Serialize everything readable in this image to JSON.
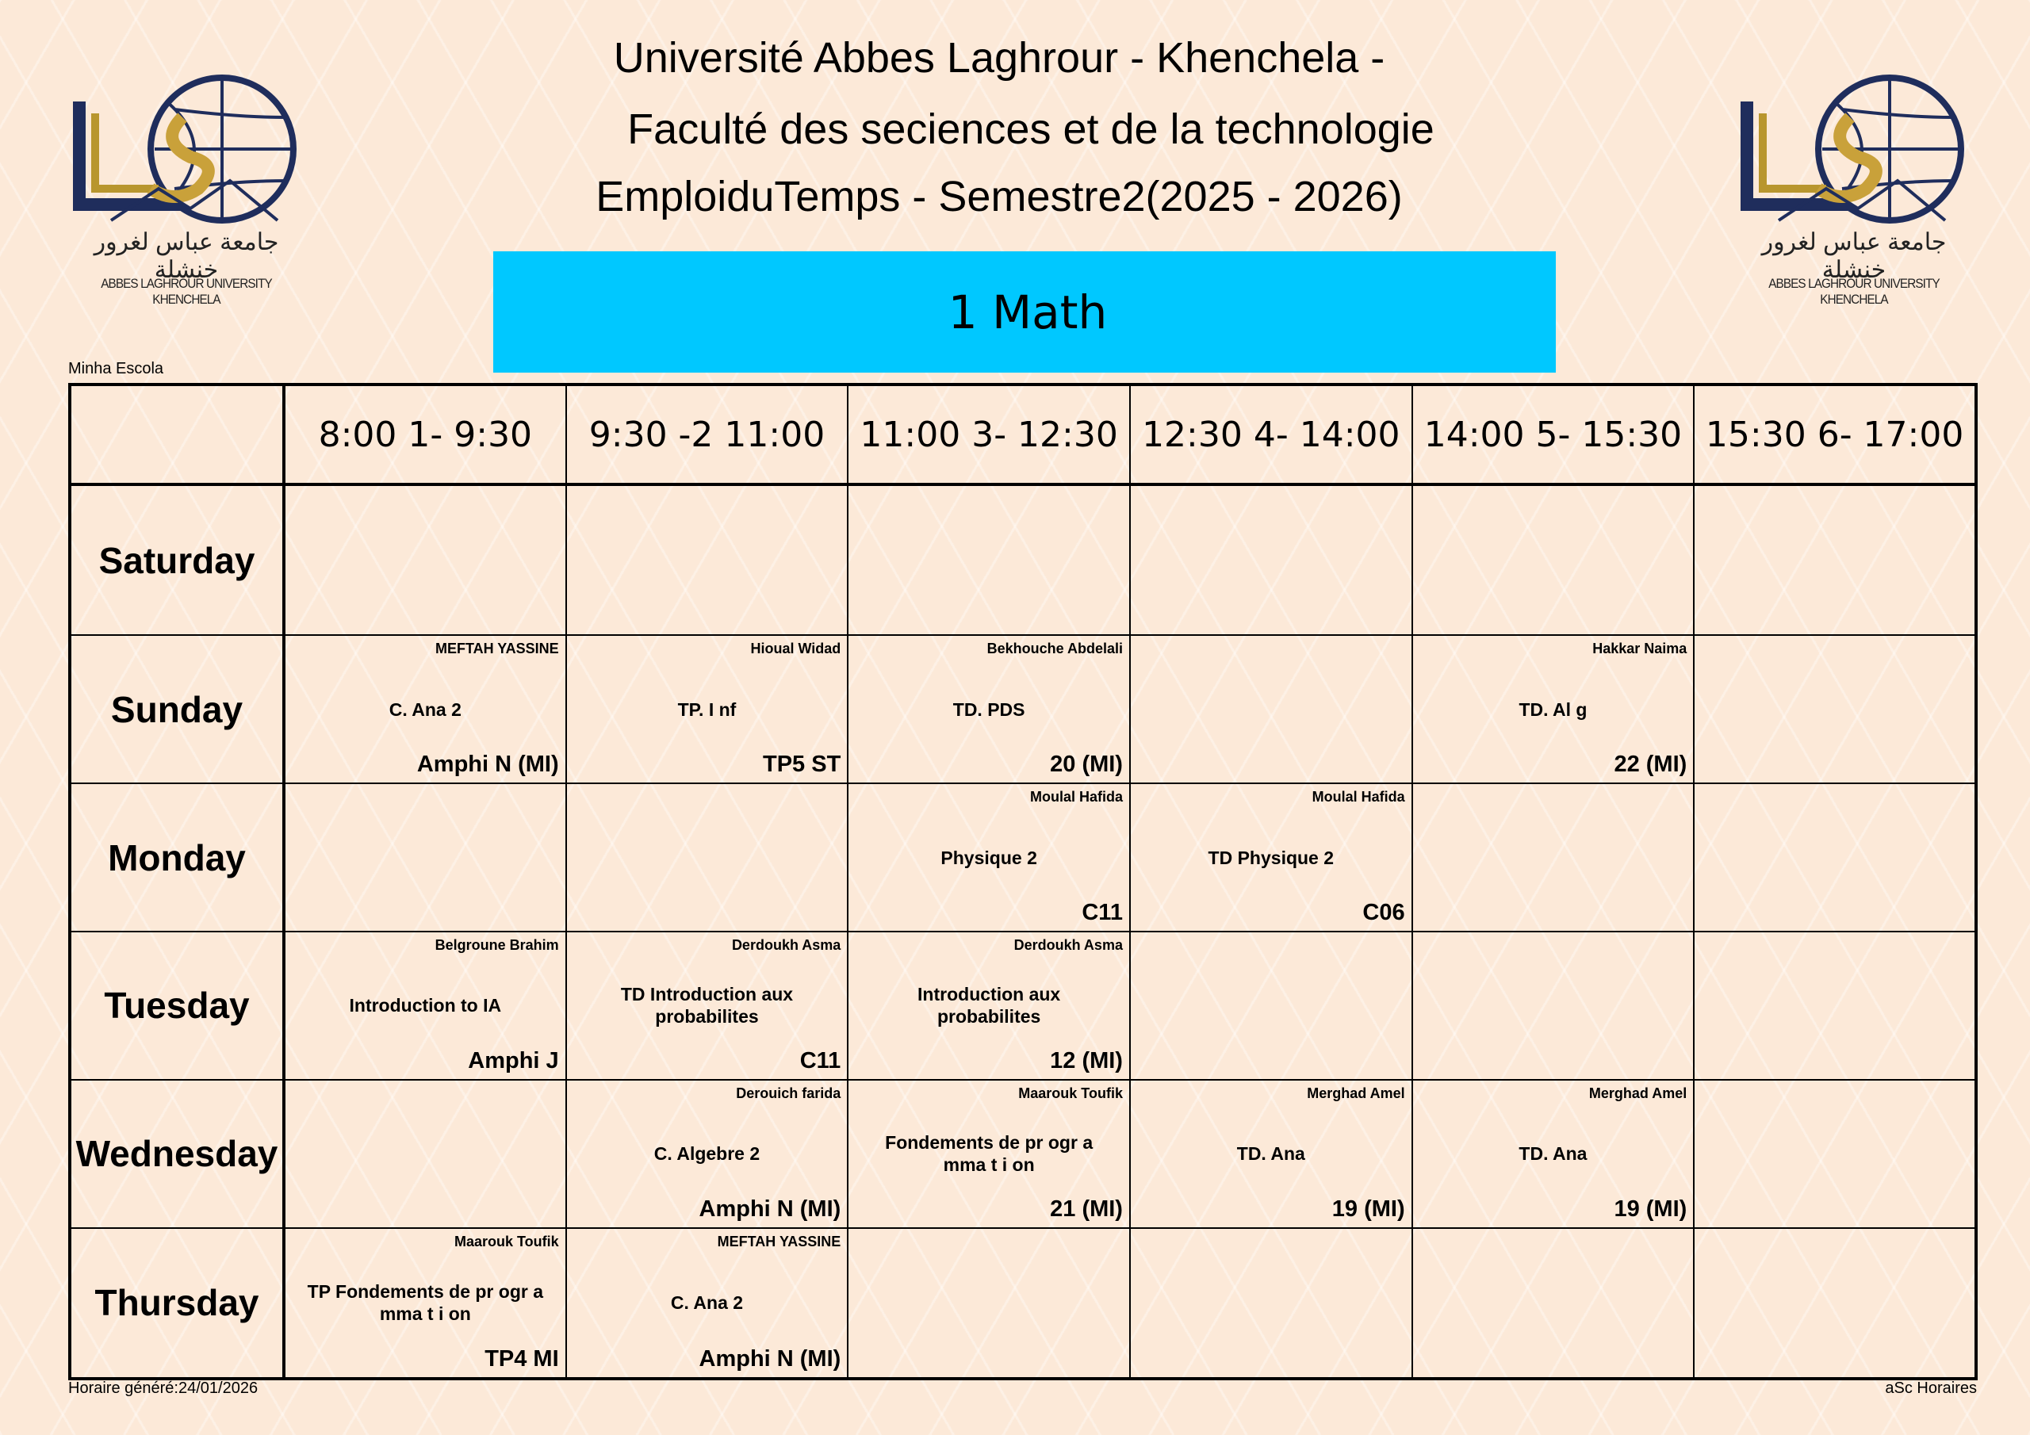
{
  "header": {
    "line1": "Université Abbes Laghrour - Khenchela -",
    "line2": "Faculté des seciences et de la technologie",
    "line3": "EmploiduTemps - Semestre2(2025 - 2026)",
    "class_name": "1 Math",
    "logo_text_arabic": "جامعة عباس لغرور خنشلة",
    "logo_text_latin": "ABBES LAGHROUR UNIVERSITY KHENCHELA",
    "banner_color": "#00c8ff"
  },
  "school_label": "Minha Escola",
  "footer": {
    "generated": "Horaire généré:24/01/2026",
    "credit": "aSc Horaires"
  },
  "periods": [
    "8:00 1- 9:30",
    "9:30 -2 11:00",
    "11:00 3- 12:30",
    "12:30 4- 14:00",
    "14:00 5- 15:30",
    "15:30 6- 17:00"
  ],
  "days": [
    {
      "name": "Saturday",
      "slots": [
        null,
        null,
        null,
        null,
        null,
        null
      ]
    },
    {
      "name": "Sunday",
      "slots": [
        {
          "teacher": "MEFTAH YASSINE",
          "subject": "C. Ana 2",
          "room": "Amphi N (MI)"
        },
        {
          "teacher": "Hioual Widad",
          "subject": "TP. I nf",
          "room": "TP5 ST"
        },
        {
          "teacher": "Bekhouche Abdelali",
          "subject": "TD. PDS",
          "room": "20 (MI)"
        },
        null,
        {
          "teacher": "Hakkar Naima",
          "subject": "TD. Al g",
          "room": "22 (MI)"
        },
        null
      ]
    },
    {
      "name": "Monday",
      "slots": [
        null,
        null,
        {
          "teacher": "Moulal Hafida",
          "subject": "Physique 2",
          "room": "C11"
        },
        {
          "teacher": "Moulal Hafida",
          "subject": "TD Physique 2",
          "room": "C06"
        },
        null,
        null
      ]
    },
    {
      "name": "Tuesday",
      "slots": [
        {
          "teacher": "Belgroune Brahim",
          "subject": "Introduction to IA",
          "room": "Amphi J"
        },
        {
          "teacher": "Derdoukh Asma",
          "subject": "TD Introduction aux probabilites",
          "room": "C11"
        },
        {
          "teacher": "Derdoukh Asma",
          "subject": "Introduction aux probabilites",
          "room": "12 (MI)"
        },
        null,
        null,
        null
      ]
    },
    {
      "name": "Wednesday",
      "slots": [
        null,
        {
          "teacher": "Derouich farida",
          "subject": "C. Algebre 2",
          "room": "Amphi N (MI)"
        },
        {
          "teacher": "Maarouk Toufik",
          "subject": "Fondements de pr ogr a mma t i on",
          "room": "21 (MI)"
        },
        {
          "teacher": "Merghad Amel",
          "subject": "TD. Ana",
          "room": "19 (MI)"
        },
        {
          "teacher": "Merghad Amel",
          "subject": "TD. Ana",
          "room": "19 (MI)"
        },
        null
      ]
    },
    {
      "name": "Thursday",
      "slots": [
        {
          "teacher": "Maarouk Toufik",
          "subject": "TP Fondements de pr ogr a mma t i on",
          "room": "TP4 MI"
        },
        {
          "teacher": "MEFTAH YASSINE",
          "subject": "C. Ana 2",
          "room": "Amphi N (MI)"
        },
        null,
        null,
        null,
        null
      ]
    }
  ]
}
